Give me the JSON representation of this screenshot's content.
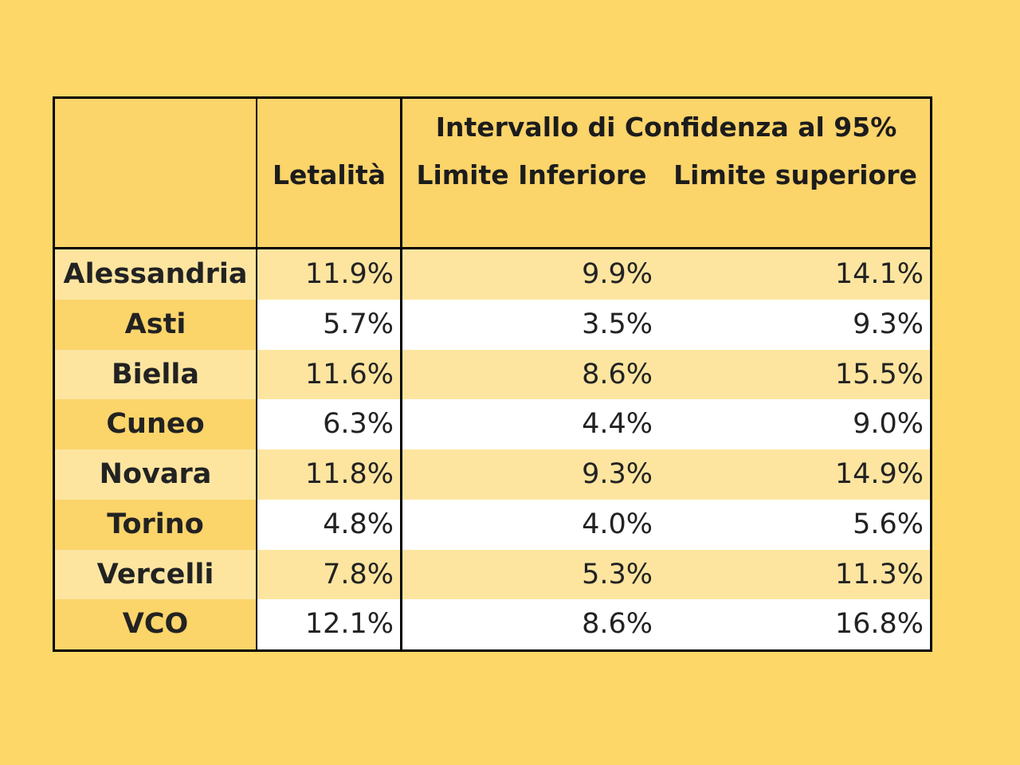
{
  "chart_data": {
    "type": "table",
    "header_group": "Intervallo di Confidenza al 95%",
    "columns": [
      "",
      "Letalità",
      "Limite Inferiore",
      "Limite superiore"
    ],
    "rows": [
      {
        "name": "Alessandria",
        "letalita": "11.9%",
        "inferiore": "9.9%",
        "superiore": "14.1%"
      },
      {
        "name": "Asti",
        "letalita": "5.7%",
        "inferiore": "3.5%",
        "superiore": "9.3%"
      },
      {
        "name": "Biella",
        "letalita": "11.6%",
        "inferiore": "8.6%",
        "superiore": "15.5%"
      },
      {
        "name": "Cuneo",
        "letalita": "6.3%",
        "inferiore": "4.4%",
        "superiore": "9.0%"
      },
      {
        "name": "Novara",
        "letalita": "11.8%",
        "inferiore": "9.3%",
        "superiore": "14.9%"
      },
      {
        "name": "Torino",
        "letalita": "4.8%",
        "inferiore": "4.0%",
        "superiore": "5.6%"
      },
      {
        "name": "Vercelli",
        "letalita": "7.8%",
        "inferiore": "5.3%",
        "superiore": "11.3%"
      },
      {
        "name": "VCO",
        "letalita": "12.1%",
        "inferiore": "8.6%",
        "superiore": "16.8%"
      }
    ]
  },
  "colors": {
    "background": "#fdd868",
    "header_fill": "#fbd46a",
    "band_light": "#fde5a0",
    "band_white": "#ffffff"
  }
}
